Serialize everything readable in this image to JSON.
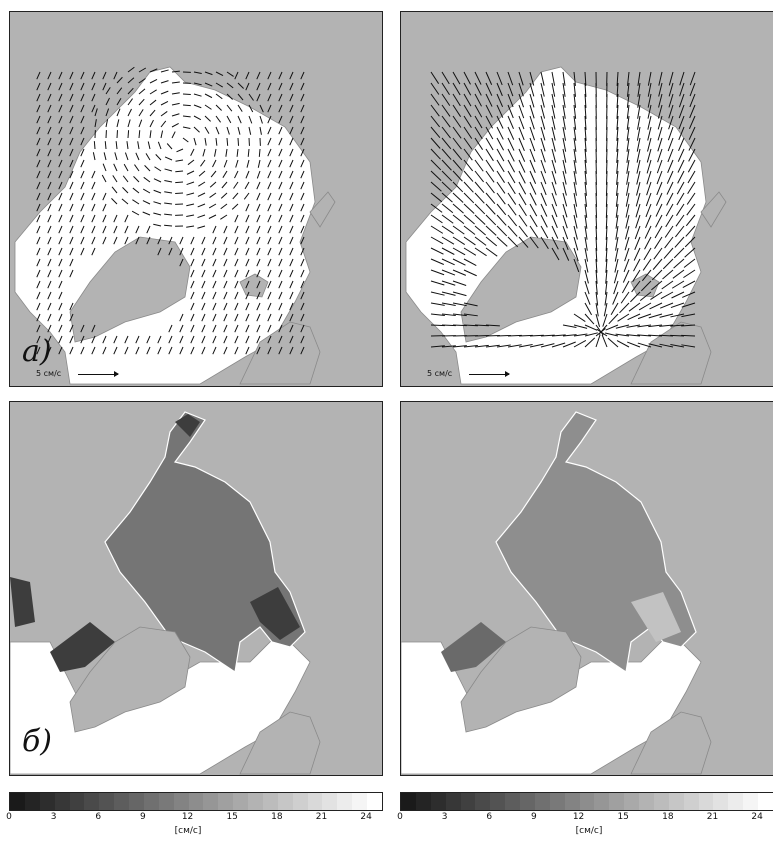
{
  "panels": {
    "top_left": {
      "letter": "а)",
      "scale_label": "5 см/с"
    },
    "top_right": {
      "scale_label": "5 см/с"
    },
    "bottom_left": {
      "letter": "б)"
    }
  },
  "colorbar": {
    "min": 0,
    "max": 25,
    "tick_labels": [
      "0",
      "3",
      "6",
      "9",
      "12",
      "15",
      "18",
      "21",
      "24"
    ],
    "tick_values": [
      0,
      3,
      6,
      9,
      12,
      15,
      18,
      21,
      24
    ],
    "unit": "[см/с]",
    "colors": [
      "#1a1a1a",
      "#ffffff"
    ]
  },
  "colors": {
    "land": "#b3b3b3",
    "coast": "#8a8a8a",
    "ocean": "#ffffff",
    "vectors": "#111111"
  },
  "icons": [
    "vector-arrow-icon"
  ]
}
